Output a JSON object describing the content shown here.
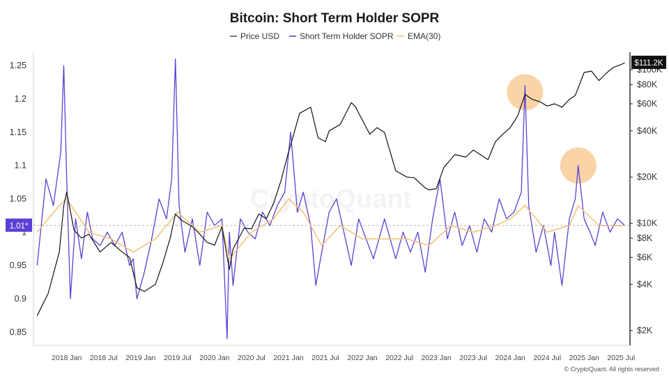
{
  "chart_data": {
    "type": "line",
    "title": "Bitcoin: Short Term Holder SOPR",
    "legend": {
      "placement": "top-center",
      "entries": [
        {
          "name": "Price USD",
          "color": "#555555"
        },
        {
          "name": "Short Term Holder SOPR",
          "color": "#5b3fd6"
        },
        {
          "name": "EMA(30)",
          "color": "#f2c27a"
        }
      ]
    },
    "watermark": "CryptoQuant",
    "credit": "© CryptoQuant. All rights reserved",
    "x_axis": {
      "start": "2017-07",
      "end": "2025-07",
      "tick_labels": [
        "2018 Jan",
        "2018 Jul",
        "2019 Jan",
        "2019 Jul",
        "2020 Jan",
        "2020 Jul",
        "2021 Jan",
        "2021 Jul",
        "2022 Jan",
        "2022 Jul",
        "2023 Jan",
        "2023 Jul",
        "2024 Jan",
        "2024 Jul",
        "2025 Jan",
        "2025 Jul"
      ],
      "tick_dates": [
        2018.0,
        2018.5,
        2019.0,
        2019.5,
        2020.0,
        2020.5,
        2021.0,
        2021.5,
        2022.0,
        2022.5,
        2023.0,
        2023.5,
        2024.0,
        2024.5,
        2025.0,
        2025.5
      ]
    },
    "y_left": {
      "label": "",
      "range": [
        0.83,
        1.27
      ],
      "ticks": [
        0.85,
        0.9,
        0.95,
        1,
        1.05,
        1.1,
        1.15,
        1.2,
        1.25
      ],
      "tick_labels": [
        "0.85",
        "0.9",
        "0.95",
        "1",
        "1.05",
        "1.1",
        "1.15",
        "1.2",
        "1.25"
      ],
      "current_label": "1.01*",
      "current_value": 1.01
    },
    "y_right": {
      "label": "",
      "scale": "log",
      "range": [
        1600,
        130000
      ],
      "ticks": [
        2000,
        4000,
        6000,
        8000,
        10000,
        20000,
        40000,
        60000,
        80000,
        100000
      ],
      "tick_labels": [
        "$2K",
        "$4K",
        "$6K",
        "$8K",
        "$10K",
        "$20K",
        "$40K",
        "$60K",
        "$80K",
        "$100K"
      ],
      "current_label": "$111.2K",
      "current_value": 111200
    },
    "series": [
      {
        "name": "Price USD",
        "axis": "right",
        "color": "#111111",
        "x": [
          2017.6,
          2017.75,
          2017.9,
          2017.96,
          2018.0,
          2018.1,
          2018.2,
          2018.3,
          2018.45,
          2018.6,
          2018.75,
          2018.85,
          2018.95,
          2019.05,
          2019.2,
          2019.3,
          2019.4,
          2019.47,
          2019.55,
          2019.7,
          2019.8,
          2019.9,
          2020.0,
          2020.1,
          2020.2,
          2020.25,
          2020.4,
          2020.5,
          2020.6,
          2020.7,
          2020.8,
          2020.9,
          2021.0,
          2021.05,
          2021.15,
          2021.3,
          2021.4,
          2021.5,
          2021.55,
          2021.7,
          2021.85,
          2021.9,
          2022.0,
          2022.1,
          2022.2,
          2022.3,
          2022.45,
          2022.6,
          2022.7,
          2022.85,
          2022.9,
          2023.0,
          2023.1,
          2023.25,
          2023.4,
          2023.5,
          2023.7,
          2023.8,
          2023.9,
          2024.0,
          2024.1,
          2024.2,
          2024.3,
          2024.4,
          2024.5,
          2024.6,
          2024.7,
          2024.8,
          2024.88,
          2025.0,
          2025.1,
          2025.2,
          2025.3,
          2025.4,
          2025.5,
          2025.55
        ],
        "values": [
          2500,
          3500,
          6500,
          13000,
          16000,
          9000,
          8000,
          8500,
          6500,
          7500,
          6500,
          6000,
          3800,
          3600,
          4000,
          5500,
          8000,
          11500,
          10500,
          9500,
          8500,
          7500,
          7200,
          9500,
          5000,
          6800,
          9300,
          9200,
          11500,
          10700,
          13500,
          19000,
          29000,
          35000,
          52000,
          57000,
          36000,
          34000,
          40000,
          44000,
          61000,
          58000,
          47000,
          38000,
          42000,
          39000,
          22000,
          20000,
          19800,
          17000,
          16500,
          16800,
          23000,
          28000,
          27000,
          30000,
          26000,
          34000,
          38000,
          42000,
          50000,
          69000,
          64000,
          62000,
          58000,
          60000,
          57000,
          64000,
          68000,
          96000,
          98000,
          85000,
          95000,
          104000,
          108000,
          111200
        ]
      },
      {
        "name": "Short Term Holder SOPR",
        "axis": "left",
        "color": "#5b3fd6",
        "x": [
          2017.6,
          2017.72,
          2017.82,
          2017.92,
          2017.96,
          2018.0,
          2018.05,
          2018.12,
          2018.2,
          2018.28,
          2018.35,
          2018.45,
          2018.55,
          2018.65,
          2018.75,
          2018.85,
          2018.9,
          2018.95,
          2019.05,
          2019.15,
          2019.25,
          2019.35,
          2019.42,
          2019.47,
          2019.52,
          2019.6,
          2019.7,
          2019.8,
          2019.9,
          2020.0,
          2020.1,
          2020.17,
          2020.2,
          2020.25,
          2020.35,
          2020.45,
          2020.55,
          2020.65,
          2020.75,
          2020.85,
          2020.95,
          2021.03,
          2021.12,
          2021.2,
          2021.3,
          2021.37,
          2021.45,
          2021.55,
          2021.65,
          2021.75,
          2021.85,
          2021.95,
          2022.05,
          2022.15,
          2022.3,
          2022.45,
          2022.55,
          2022.65,
          2022.75,
          2022.85,
          2022.95,
          2023.05,
          2023.15,
          2023.25,
          2023.35,
          2023.45,
          2023.55,
          2023.65,
          2023.75,
          2023.85,
          2023.95,
          2024.05,
          2024.15,
          2024.2,
          2024.25,
          2024.35,
          2024.45,
          2024.55,
          2024.6,
          2024.7,
          2024.8,
          2024.88,
          2024.92,
          2025.0,
          2025.08,
          2025.15,
          2025.25,
          2025.35,
          2025.45,
          2025.55
        ],
        "values": [
          0.95,
          1.08,
          1.04,
          1.12,
          1.25,
          1.08,
          0.9,
          1.02,
          0.96,
          1.03,
          0.99,
          0.98,
          1.0,
          0.98,
          1.0,
          0.95,
          0.96,
          0.9,
          0.94,
          0.99,
          1.05,
          1.02,
          1.08,
          1.26,
          1.04,
          0.97,
          1.02,
          0.95,
          1.03,
          1.01,
          1.02,
          0.84,
          1.0,
          0.92,
          1.02,
          1.0,
          0.99,
          1.03,
          1.01,
          1.04,
          1.06,
          1.15,
          1.03,
          1.06,
          1.01,
          0.92,
          0.97,
          1.03,
          1.05,
          1.0,
          0.95,
          1.02,
          0.99,
          0.96,
          1.02,
          0.96,
          1.0,
          0.97,
          1.0,
          0.94,
          1.02,
          1.08,
          0.99,
          1.03,
          0.98,
          1.01,
          0.97,
          1.02,
          1.0,
          1.05,
          1.02,
          1.03,
          1.06,
          1.22,
          1.04,
          0.97,
          1.01,
          0.95,
          1.0,
          0.92,
          1.02,
          1.05,
          1.1,
          1.02,
          1.0,
          0.98,
          1.03,
          1.0,
          1.02,
          1.01
        ]
      },
      {
        "name": "EMA(30)",
        "axis": "left",
        "color": "#f2c27a",
        "x": [
          2017.6,
          2017.9,
          2018.0,
          2018.3,
          2018.6,
          2018.9,
          2019.2,
          2019.5,
          2019.8,
          2020.1,
          2020.2,
          2020.5,
          2020.8,
          2021.0,
          2021.2,
          2021.45,
          2021.7,
          2022.0,
          2022.3,
          2022.6,
          2022.9,
          2023.2,
          2023.5,
          2023.8,
          2024.0,
          2024.2,
          2024.5,
          2024.8,
          2024.92,
          2025.2,
          2025.55
        ],
        "values": [
          1.0,
          1.04,
          1.05,
          1.0,
          0.99,
          0.97,
          0.99,
          1.03,
          1.0,
          1.01,
          0.96,
          1.0,
          1.02,
          1.05,
          1.03,
          0.98,
          1.01,
          0.99,
          0.99,
          0.99,
          0.98,
          1.01,
          1.0,
          1.01,
          1.02,
          1.04,
          1.0,
          1.01,
          1.04,
          1.01,
          1.01
        ]
      }
    ],
    "highlights": [
      {
        "x": 2024.2,
        "y": 1.21,
        "color": "#f5c58a"
      },
      {
        "x": 2024.92,
        "y": 1.1,
        "color": "#f5c58a"
      }
    ],
    "grid": false
  }
}
